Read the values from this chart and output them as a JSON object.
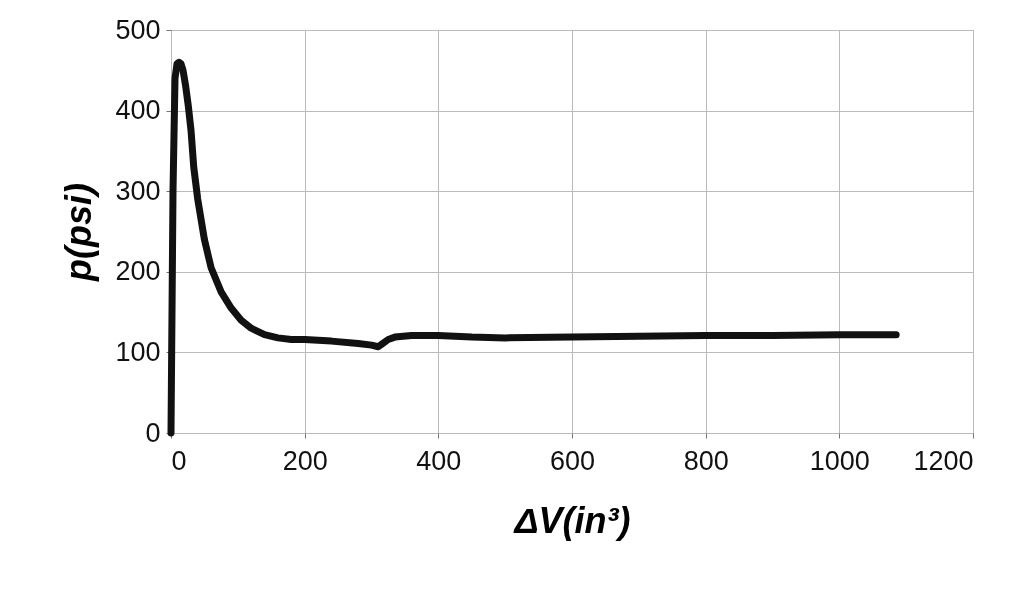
{
  "chart_data": {
    "type": "line",
    "xlabel": "ΔV(in³)",
    "ylabel": "p(psi)",
    "x": [
      0,
      3,
      6,
      9,
      12,
      15,
      18,
      22,
      26,
      30,
      34,
      40,
      50,
      60,
      75,
      90,
      105,
      120,
      140,
      160,
      180,
      200,
      240,
      280,
      300,
      310,
      315,
      325,
      335,
      360,
      400,
      450,
      500,
      600,
      700,
      800,
      900,
      1000,
      1085
    ],
    "series": [
      {
        "color": "#111111",
        "values": [
          0,
          300,
          440,
          458,
          460,
          458,
          450,
          430,
          405,
          375,
          330,
          290,
          240,
          205,
          175,
          155,
          140,
          130,
          122,
          118,
          116,
          116,
          114,
          111,
          109,
          107,
          110,
          116,
          119,
          121,
          121,
          119,
          118,
          119,
          120,
          121,
          121,
          122,
          122
        ]
      }
    ],
    "xlim": [
      0,
      1200
    ],
    "ylim": [
      0,
      500
    ],
    "xticks": [
      0,
      200,
      400,
      600,
      800,
      1000,
      1200
    ],
    "yticks": [
      0,
      100,
      200,
      300,
      400,
      500
    ],
    "grid": true,
    "marker": "none",
    "line_style": "solid",
    "legend": false
  }
}
